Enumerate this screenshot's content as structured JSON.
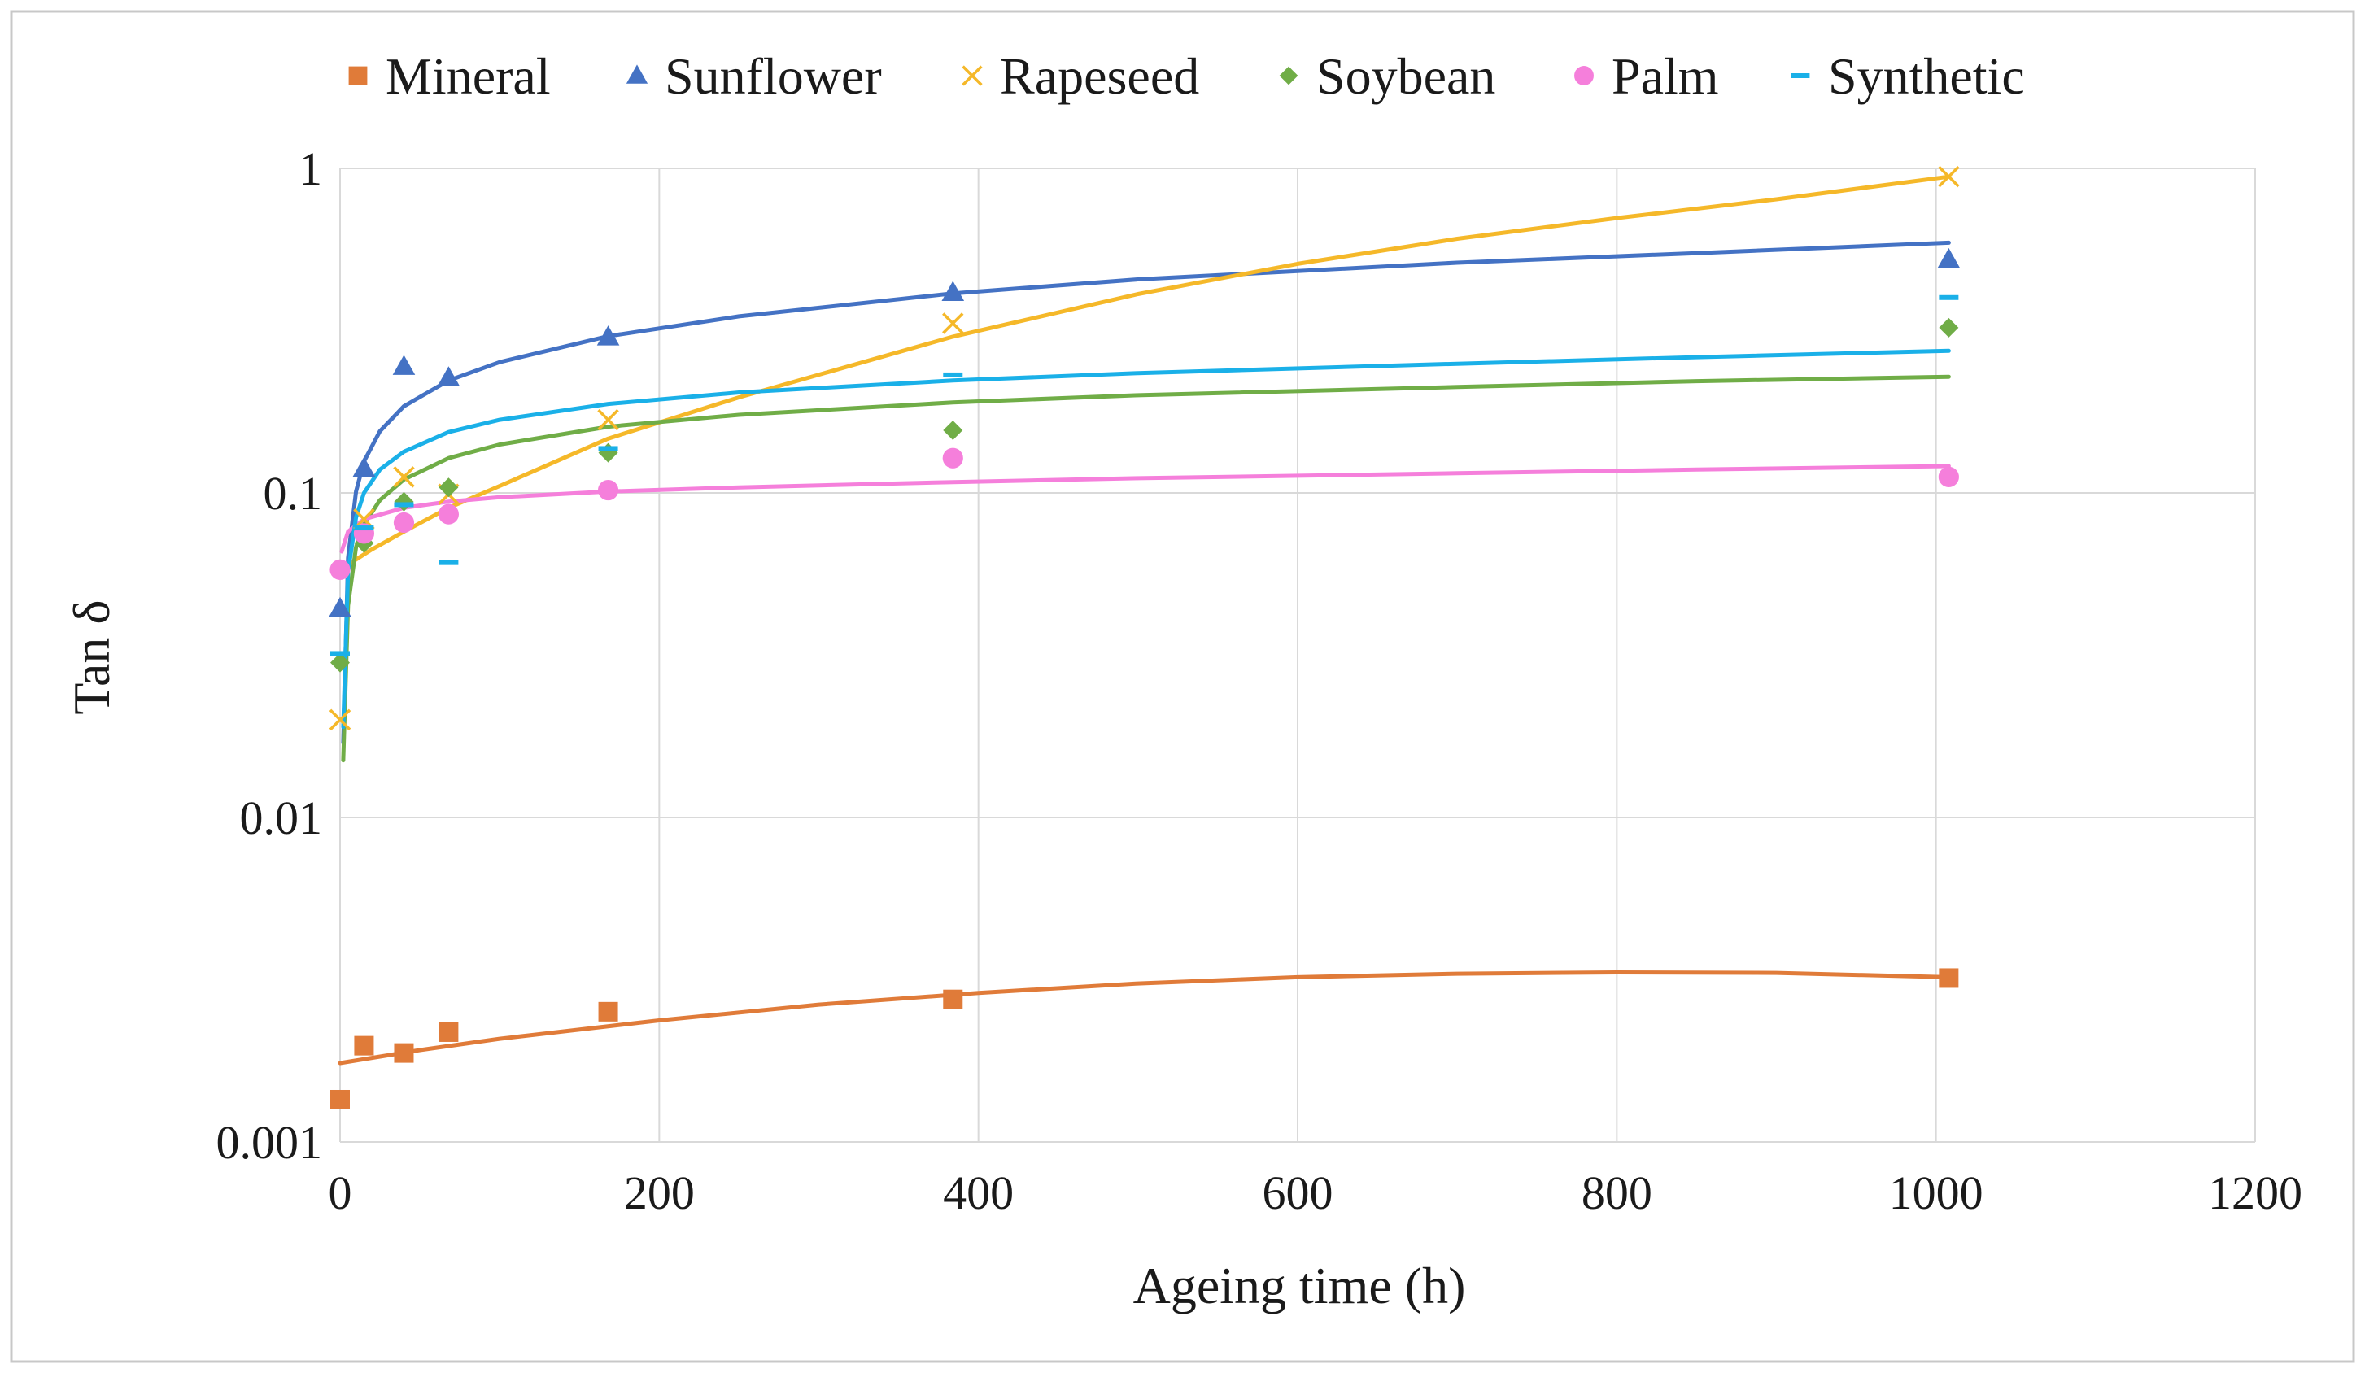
{
  "chart_data": {
    "type": "scatter",
    "title": "",
    "xlabel": "Ageing time (h)",
    "ylabel": "Tan δ",
    "xlim": [
      0,
      1200
    ],
    "ylim": [
      0.001,
      1
    ],
    "yscale": "log",
    "xticks": [
      0,
      200,
      400,
      600,
      800,
      1000,
      1200
    ],
    "yticks": [
      0.001,
      0.01,
      0.1,
      1
    ],
    "xtick_labels": [
      "0",
      "200",
      "400",
      "600",
      "800",
      "1000",
      "1200"
    ],
    "ytick_labels": [
      "0.001",
      "0.01",
      "0.1",
      "1"
    ],
    "grid": true,
    "legend_position": "top",
    "series": [
      {
        "name": "Mineral",
        "marker": "square",
        "color": "#e07b39",
        "x": [
          0,
          15,
          40,
          68,
          168,
          384,
          1008
        ],
        "y": [
          0.00135,
          0.00198,
          0.00188,
          0.00218,
          0.00252,
          0.00275,
          0.0032
        ],
        "trend": {
          "x": [
            0,
            50,
            100,
            200,
            300,
            400,
            500,
            600,
            700,
            800,
            900,
            1008
          ],
          "y": [
            0.00175,
            0.00192,
            0.00208,
            0.00237,
            0.00265,
            0.00288,
            0.00308,
            0.00322,
            0.0033,
            0.00333,
            0.00332,
            0.00322
          ]
        }
      },
      {
        "name": "Sunflower",
        "marker": "triangle",
        "color": "#4472c4",
        "x": [
          0,
          15,
          40,
          68,
          168,
          384,
          1008
        ],
        "y": [
          0.044,
          0.119,
          0.245,
          0.226,
          0.302,
          0.414,
          0.523
        ],
        "trend": {
          "x": [
            2,
            5,
            10,
            15,
            25,
            40,
            68,
            100,
            168,
            250,
            384,
            500,
            700,
            850,
            1008
          ],
          "y": [
            0.017,
            0.063,
            0.101,
            0.125,
            0.155,
            0.185,
            0.222,
            0.253,
            0.304,
            0.35,
            0.412,
            0.455,
            0.512,
            0.548,
            0.59
          ]
        }
      },
      {
        "name": "Rapeseed",
        "marker": "x",
        "color": "#f5b829",
        "x": [
          0,
          15,
          40,
          68,
          168,
          384,
          1008
        ],
        "y": [
          0.02,
          0.083,
          0.112,
          0.099,
          0.168,
          0.333,
          0.943
        ],
        "trend": {
          "x": [
            0,
            20,
            40,
            68,
            100,
            168,
            250,
            384,
            500,
            600,
            700,
            800,
            900,
            1008
          ],
          "y": [
            0.058,
            0.067,
            0.076,
            0.09,
            0.105,
            0.147,
            0.197,
            0.303,
            0.41,
            0.508,
            0.607,
            0.703,
            0.803,
            0.943
          ]
        }
      },
      {
        "name": "Soybean",
        "marker": "diamond",
        "color": "#70ad47",
        "x": [
          0,
          15,
          40,
          68,
          168,
          384,
          1008
        ],
        "y": [
          0.03,
          0.07,
          0.094,
          0.104,
          0.133,
          0.156,
          0.323
        ],
        "trend": {
          "x": [
            2,
            5,
            10,
            15,
            25,
            40,
            68,
            100,
            168,
            250,
            384,
            500,
            700,
            850,
            1008
          ],
          "y": [
            0.015,
            0.045,
            0.068,
            0.08,
            0.095,
            0.11,
            0.128,
            0.141,
            0.16,
            0.174,
            0.19,
            0.2,
            0.212,
            0.221,
            0.228
          ]
        }
      },
      {
        "name": "Palm",
        "marker": "circle",
        "color": "#f57fdb",
        "x": [
          0,
          15,
          40,
          68,
          168,
          384,
          1008
        ],
        "y": [
          0.058,
          0.075,
          0.081,
          0.086,
          0.102,
          0.128,
          0.112
        ],
        "trend": {
          "x": [
            1,
            5,
            15,
            40,
            68,
            100,
            168,
            250,
            384,
            500,
            700,
            850,
            1008
          ],
          "y": [
            0.066,
            0.076,
            0.083,
            0.09,
            0.094,
            0.097,
            0.101,
            0.104,
            0.108,
            0.111,
            0.115,
            0.118,
            0.121
          ]
        }
      },
      {
        "name": "Synthetic",
        "marker": "dash",
        "color": "#1ab0e8",
        "x": [
          0,
          15,
          40,
          68,
          168,
          384,
          1008
        ],
        "y": [
          0.032,
          0.078,
          0.092,
          0.061,
          0.137,
          0.231,
          0.4
        ],
        "trend": {
          "x": [
            2,
            5,
            10,
            15,
            25,
            40,
            68,
            100,
            168,
            250,
            384,
            500,
            700,
            850,
            1008
          ],
          "y": [
            0.019,
            0.057,
            0.084,
            0.1,
            0.118,
            0.134,
            0.154,
            0.168,
            0.188,
            0.204,
            0.222,
            0.234,
            0.25,
            0.262,
            0.274
          ]
        }
      }
    ]
  }
}
